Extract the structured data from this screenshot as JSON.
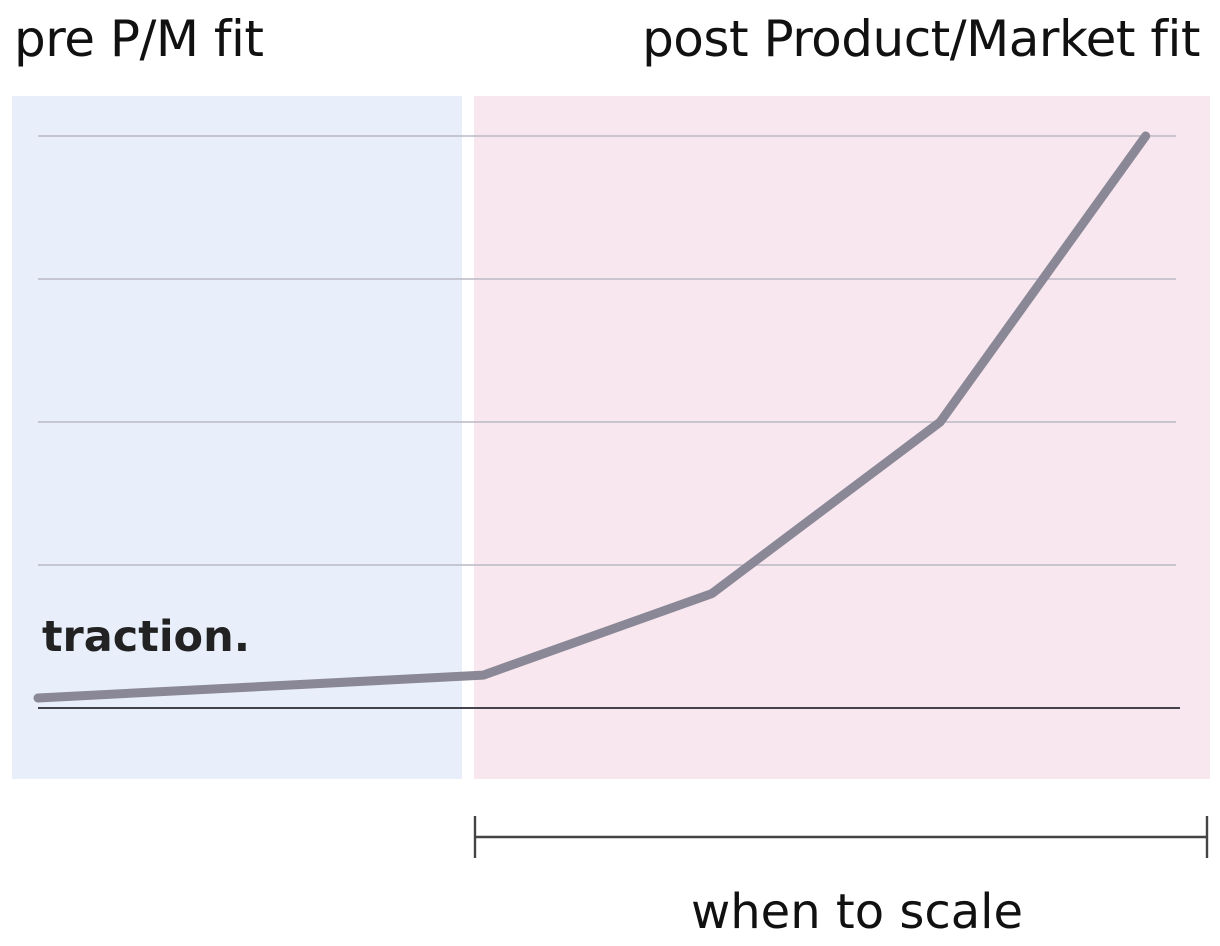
{
  "regions": {
    "pre_label": "pre P/M fit",
    "post_label": "post Product/Market fit",
    "pre_color": "#e8effb",
    "post_color": "#f8e7ee"
  },
  "chart_data": {
    "type": "line",
    "title": "",
    "xlabel": "",
    "ylabel": "",
    "ylim": [
      0,
      4
    ],
    "xlim": [
      0,
      10
    ],
    "grid": true,
    "gridlines_y": [
      1,
      2,
      3,
      4
    ],
    "baseline_y": 0,
    "series": [
      {
        "label": "traction.",
        "color": "#8a8796",
        "x": [
          0,
          3.9,
          5.9,
          7.9,
          9.7
        ],
        "y": [
          0.07,
          0.23,
          0.8,
          2.0,
          4.0
        ]
      }
    ],
    "regions": [
      {
        "label": "pre P/M fit",
        "x": [
          0,
          3.8
        ]
      },
      {
        "label": "post Product/Market fit",
        "x": [
          3.8,
          10
        ]
      }
    ],
    "bracket": {
      "label": "when to scale",
      "x": [
        3.8,
        10
      ]
    }
  }
}
